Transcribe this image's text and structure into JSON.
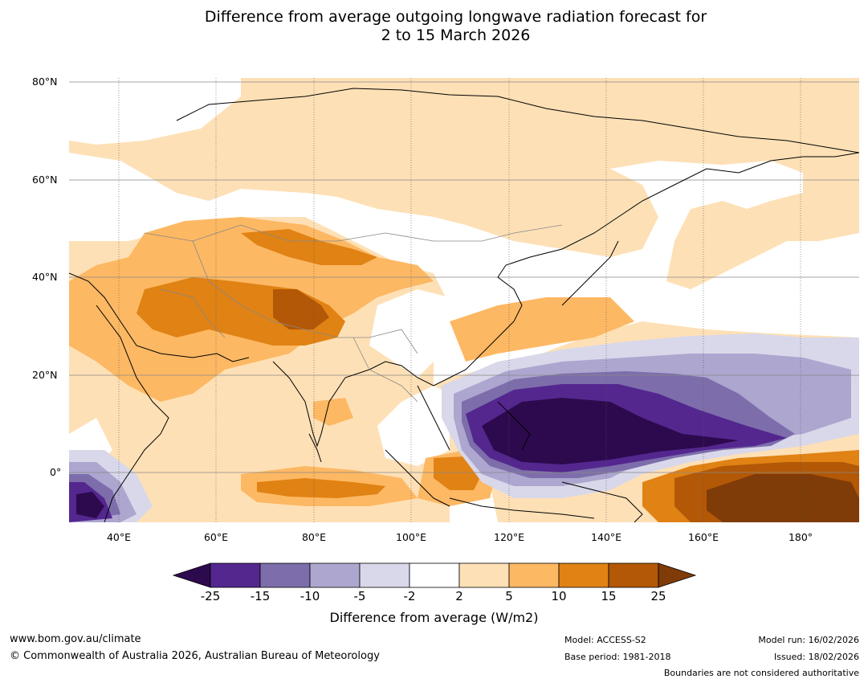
{
  "title_line1": "Difference from average outgoing longwave radiation forecast for",
  "title_line2": "2 to 15 March 2026",
  "map": {
    "lat_labels": [
      "80°N",
      "60°N",
      "40°N",
      "20°N",
      "0°"
    ],
    "lon_labels": [
      "40°E",
      "60°E",
      "80°E",
      "100°E",
      "120°E",
      "140°E",
      "160°E",
      "180°"
    ]
  },
  "legend": {
    "ticks": [
      "-25",
      "-15",
      "-10",
      "-5",
      "-2",
      "2",
      "5",
      "10",
      "15",
      "25"
    ],
    "colors": [
      "#2d0a4e",
      "#54278f",
      "#7d6eab",
      "#ada6cf",
      "#d8d8ea",
      "#ffffff",
      "#fee0b6",
      "#fdb863",
      "#e08214",
      "#b35806",
      "#7f3b08"
    ],
    "title": "Difference from average (W/m2)"
  },
  "footer": {
    "website": "www.bom.gov.au/climate",
    "copyright": "© Commonwealth of Australia 2026, Australian Bureau of Meteorology",
    "model": "Model: ACCESS-S2",
    "base_period": "Base period: 1981-2018",
    "model_run": "Model run: 16/02/2026",
    "issued": "Issued: 18/02/2026",
    "disclaimer": "Boundaries are not considered authoritative"
  }
}
